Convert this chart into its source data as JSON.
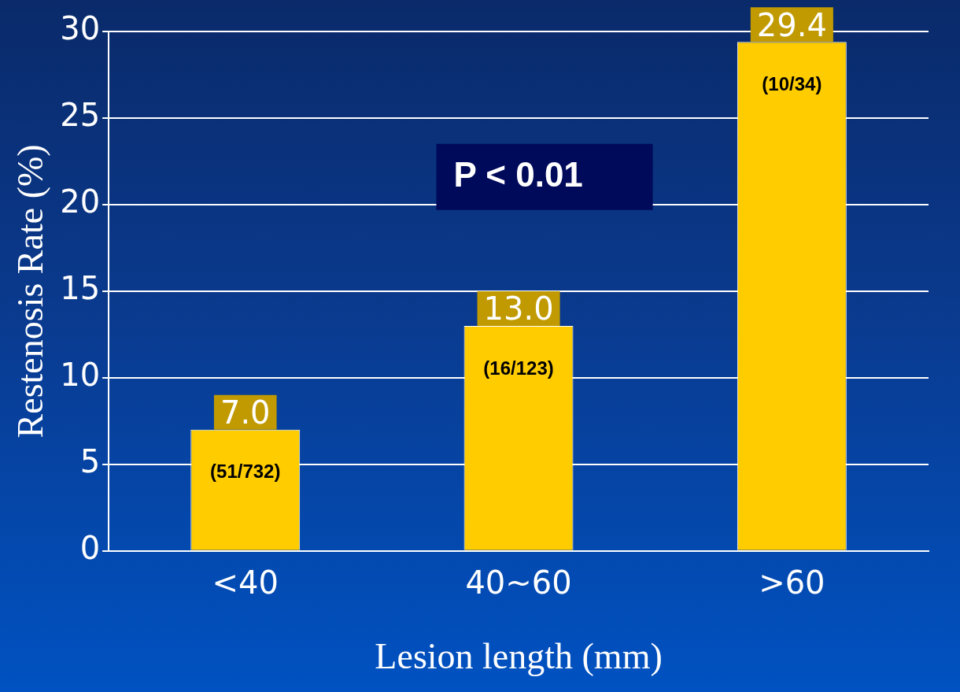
{
  "chart_data": {
    "type": "bar",
    "xlabel": "Lesion length (mm)",
    "ylabel": "Restenosis Rate (%)",
    "categories": [
      "<40",
      "40~60",
      ">60"
    ],
    "values": [
      7.0,
      13.0,
      29.4
    ],
    "color": "#ffcc00",
    "value_labels": [
      "7.0",
      "13.0",
      "29.4"
    ],
    "ylim": [
      0,
      30
    ],
    "yticks": [
      0,
      5,
      10,
      15,
      20,
      25,
      30
    ],
    "grid": "y",
    "legend": false,
    "annotations": [
      "(51/732)",
      "(16/123)",
      "(10/34)",
      "P < 0.01"
    ]
  }
}
